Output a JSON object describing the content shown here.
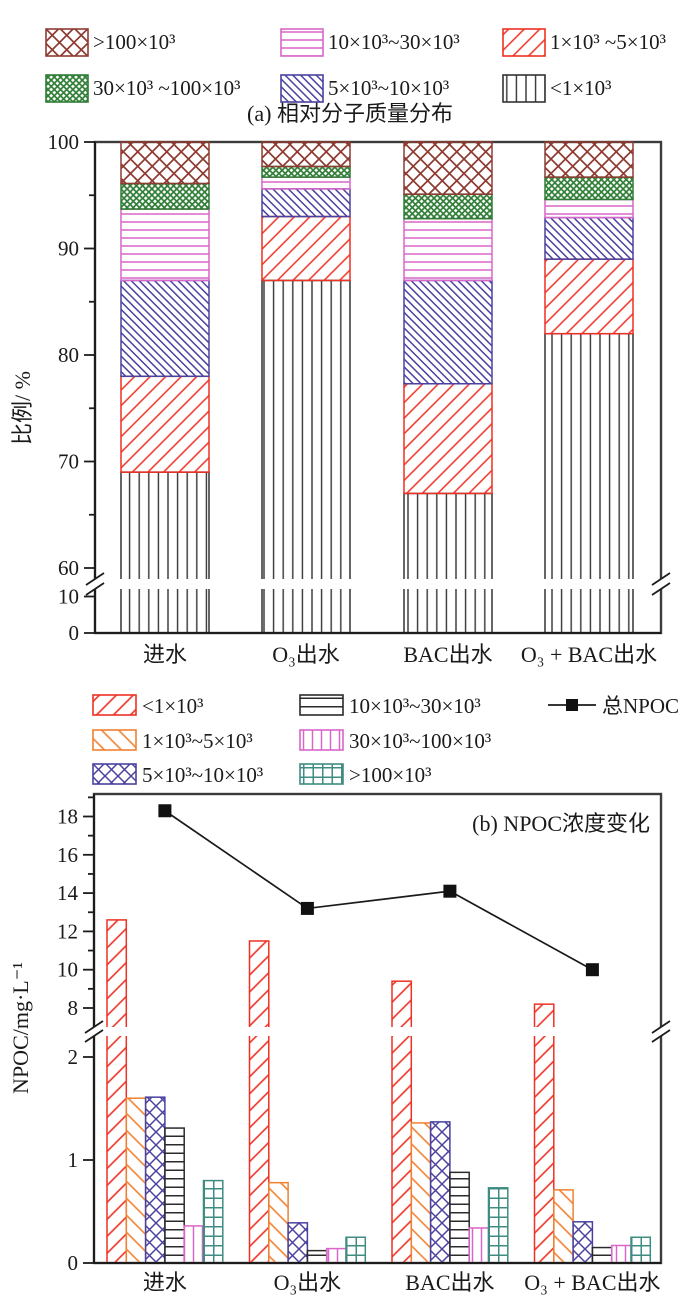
{
  "figure": {
    "background": "#ffffff",
    "text_color": "#1a1a1a"
  },
  "chart_data": [
    {
      "id": "a",
      "type": "bar",
      "stacked": true,
      "title": "(a) 相对分子质量分布",
      "ylabel": "比例/ %",
      "xlabel": "",
      "legend_position": "top",
      "grid": false,
      "categories": [
        "进水",
        "O₃出水",
        "BAC出水",
        "O₃ + BAC出水"
      ],
      "axis": {
        "broken": true,
        "upper_range": [
          60,
          100
        ],
        "upper_ticks": [
          60,
          70,
          80,
          90,
          100
        ],
        "upper_minor_ticks": [
          65,
          75,
          85,
          95
        ],
        "lower_range": [
          0,
          12
        ],
        "lower_ticks": [
          0,
          10
        ]
      },
      "series": [
        {
          "name": "<1×10³",
          "pattern": "vertical",
          "color": "#333333",
          "values": [
            69,
            87,
            67,
            82
          ]
        },
        {
          "name": "1×10³ ~5×10³",
          "pattern": "diagonal",
          "color": "#EE3124",
          "values": [
            9,
            6,
            10.3,
            7
          ]
        },
        {
          "name": "5×10³~10×10³",
          "pattern": "backslash",
          "color": "#4A42A0",
          "values": [
            9,
            2.6,
            9.7,
            3.9
          ]
        },
        {
          "name": "10×10³~30×10³",
          "pattern": "horizontal",
          "color": "#D966C9",
          "values": [
            6.7,
            1.1,
            5.8,
            1.7
          ]
        },
        {
          "name": "30×10³ ~100×10³",
          "pattern": "dense-cross",
          "color": "#2F7D36",
          "values": [
            2.4,
            1.0,
            2.3,
            2.1
          ]
        },
        {
          "name": ">100×10³",
          "pattern": "crosshatch",
          "color": "#8E3B32",
          "values": [
            3.9,
            2.3,
            4.9,
            3.3
          ]
        }
      ],
      "legend_series_order": [
        5,
        3,
        1,
        4,
        2,
        0
      ]
    },
    {
      "id": "b",
      "type": "bar",
      "stacked": false,
      "title": "(b) NPOC浓度变化",
      "ylabel": "NPOC/mg·L⁻¹",
      "xlabel": "",
      "legend_position": "top",
      "grid": false,
      "categories": [
        "进水",
        "O₃出水",
        "BAC出水",
        "O₃ + BAC出水"
      ],
      "axis": {
        "broken": true,
        "upper_range": [
          7.3,
          19.2
        ],
        "upper_ticks": [
          8,
          10,
          12,
          14,
          16,
          18
        ],
        "upper_minor_ticks": [
          9,
          11,
          13,
          15,
          17,
          19
        ],
        "lower_range": [
          0,
          2.45
        ],
        "lower_ticks": [
          0,
          1,
          2
        ]
      },
      "series": [
        {
          "name": "<1×10³",
          "pattern": "diagonal",
          "color": "#EE3124",
          "values": [
            12.6,
            11.5,
            9.4,
            8.2
          ]
        },
        {
          "name": "1×10³~5×10³",
          "pattern": "backslash",
          "color": "#F08232",
          "values": [
            1.6,
            0.78,
            1.36,
            0.71
          ]
        },
        {
          "name": "5×10³~10×10³",
          "pattern": "crosshatch",
          "color": "#4A42A0",
          "values": [
            1.61,
            0.39,
            1.37,
            0.4
          ]
        },
        {
          "name": "10×10³~30×10³",
          "pattern": "horizontal",
          "color": "#2B2B2B",
          "values": [
            1.31,
            0.12,
            0.88,
            0.15
          ]
        },
        {
          "name": "30×10³~100×10³",
          "pattern": "vertical",
          "color": "#D966C9",
          "values": [
            0.36,
            0.14,
            0.34,
            0.17
          ]
        },
        {
          "name": ">100×10³",
          "pattern": "grid",
          "color": "#3F8C82",
          "values": [
            0.8,
            0.25,
            0.73,
            0.25
          ]
        }
      ],
      "line_series": {
        "name": "总NPOC",
        "color": "#1A1A1A",
        "marker": "square",
        "values": [
          18.3,
          13.2,
          14.1,
          10.0
        ]
      },
      "legend_series_order": [
        0,
        3,
        1,
        4,
        2,
        5
      ]
    }
  ]
}
